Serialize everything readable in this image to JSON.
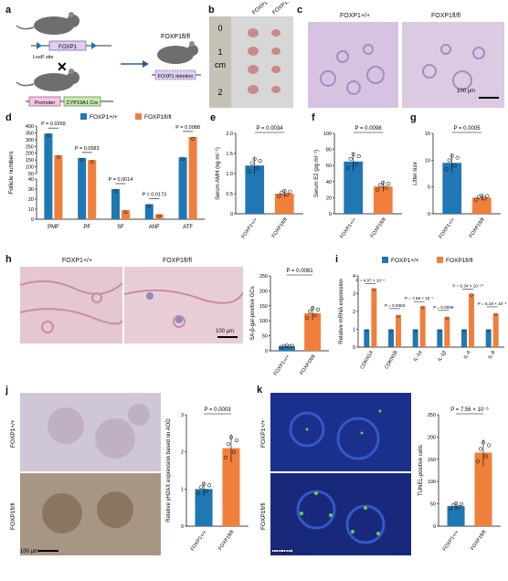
{
  "panels": {
    "a": "a",
    "b": "b",
    "c": "c",
    "d": "d",
    "e": "e",
    "f": "f",
    "g": "g",
    "h": "h",
    "i": "i",
    "j": "j",
    "k": "k"
  },
  "genotypes": {
    "wt": "FOXP1+/+",
    "ko": "FOXP1fl/fl"
  },
  "panel_a": {
    "loxp_site": "LoxP site",
    "foxp1_label": "FOXP1",
    "promoter": "Promoter",
    "cre": "CYP19A1 Cre",
    "deletion": "FOXP1 deletion",
    "result_genotype": "FOXP1fl/fl"
  },
  "panel_b": {
    "ruler_labels": [
      "0",
      "1",
      "cm",
      "2"
    ],
    "col_wt": "FOXP1+/+",
    "col_ko": "FOXP1fl/fl"
  },
  "panel_c": {
    "title_wt": "FOXP1+/+",
    "title_ko": "FOXP1fl/fl",
    "scale": "100 μm"
  },
  "panel_h": {
    "title_wt": "FOXP1+/+",
    "title_ko": "FOXP1fl/fl",
    "scale": "100 μm"
  },
  "panel_j": {
    "row_wt": "FOXP1+/+",
    "row_ko": "FOXP1fl/fl",
    "scale": "100 μm"
  },
  "panel_k": {
    "row_wt": "FOXP1+/+",
    "row_ko": "FOXP1fl/fl",
    "scale": "100 μm"
  },
  "colors": {
    "wt": "#1f77b4",
    "ko": "#f07f3c"
  },
  "chart_data": [
    {
      "id": "d",
      "type": "bar",
      "ylabel": "Follicle numbers",
      "categories": [
        "PMF",
        "PF",
        "SF",
        "ANF",
        "ATF"
      ],
      "series": [
        {
          "name": "FOXP1+/+",
          "values": [
            345,
            165,
            30,
            15,
            170
          ]
        },
        {
          "name": "FOXP1fl/fl",
          "values": [
            185,
            150,
            9,
            5,
            320
          ]
        }
      ],
      "yticks": [
        "0",
        "5",
        "10",
        "15",
        "20",
        "25",
        "30",
        "35",
        "40",
        "50",
        "100",
        "150",
        "200",
        "250",
        "300",
        "350",
        "400"
      ],
      "pvalues": [
        "P = 0.0269",
        "P = 0.0583",
        "P = 0.0014",
        "P = 0.0173",
        "P = 0.0088"
      ]
    },
    {
      "id": "e",
      "type": "bar",
      "ylabel": "Serum AMH (ng ml⁻¹)",
      "categories": [
        "FOXP1+/+",
        "FOXP1fl/fl"
      ],
      "values": [
        1.2,
        0.5
      ],
      "ylim": [
        0,
        2.0
      ],
      "yticks": [
        "0",
        "0.5",
        "1.0",
        "1.5",
        "2.0"
      ],
      "pvalue": "P = 0.0034"
    },
    {
      "id": "f",
      "type": "bar",
      "ylabel": "Serum E2 (pg ml⁻¹)",
      "categories": [
        "FOXP1+/+",
        "FOXP1fl/fl"
      ],
      "values": [
        65,
        34
      ],
      "ylim": [
        0,
        100
      ],
      "yticks": [
        "0",
        "20",
        "40",
        "60",
        "80",
        "100"
      ],
      "pvalue": "P = 0.0098"
    },
    {
      "id": "g",
      "type": "bar",
      "ylabel": "Litter size",
      "categories": [
        "FOXP1+/+",
        "FOXP1fl/fl"
      ],
      "values": [
        9.5,
        3.0
      ],
      "ylim": [
        0,
        15
      ],
      "yticks": [
        "0",
        "5",
        "10",
        "15"
      ],
      "pvalue": "P = 0.0005"
    },
    {
      "id": "h",
      "type": "bar",
      "ylabel": "SA-β-gal-positive GCs",
      "categories": [
        "FOXP1+/+",
        "FOXP1fl/fl"
      ],
      "values": [
        15,
        125
      ],
      "ylim": [
        0,
        250
      ],
      "yticks": [
        "0",
        "50",
        "100",
        "150",
        "200",
        "250"
      ],
      "pvalue": "P = 0.0081"
    },
    {
      "id": "i",
      "type": "bar",
      "ylabel": "Relative mRNA expression",
      "categories": [
        "CDKN1A",
        "CDKN1B",
        "IL-1α",
        "IL-1β",
        "IL-6",
        "IL-8"
      ],
      "series": [
        {
          "name": "FOXP1+/+",
          "values": [
            1.0,
            1.0,
            1.0,
            1.0,
            1.0,
            1.0
          ]
        },
        {
          "name": "FOXP1fl/fl",
          "values": [
            3.3,
            1.8,
            2.3,
            1.7,
            3.0,
            1.9
          ]
        }
      ],
      "ylim": [
        0,
        4
      ],
      "yticks": [
        "0",
        "1",
        "2",
        "3",
        "4"
      ],
      "pvalues": [
        "P = 4.97 × 10⁻⁶",
        "P = 0.0003",
        "P = 7.59 × 10⁻⁷",
        "P = 0.0009",
        "P = 6.34 × 10⁻¹⁰",
        "P = 6.19 × 10⁻⁵"
      ]
    },
    {
      "id": "j",
      "type": "bar",
      "ylabel": "Relative γH2AX expression based on AOD",
      "categories": [
        "FOXP1+/+",
        "FOXP1fl/fl"
      ],
      "values": [
        1.0,
        2.1
      ],
      "ylim": [
        0,
        3
      ],
      "yticks": [
        "0",
        "1",
        "2",
        "3"
      ],
      "pvalue": "P = 0.0003"
    },
    {
      "id": "k",
      "type": "bar",
      "ylabel": "TUNEL-positive cells",
      "categories": [
        "FOXP1+/+",
        "FOXP1fl/fl"
      ],
      "values": [
        45,
        165
      ],
      "ylim": [
        0,
        250
      ],
      "yticks": [
        "0",
        "50",
        "100",
        "150",
        "200",
        "250"
      ],
      "pvalue": "P = 7.56 × 10⁻⁶"
    }
  ]
}
